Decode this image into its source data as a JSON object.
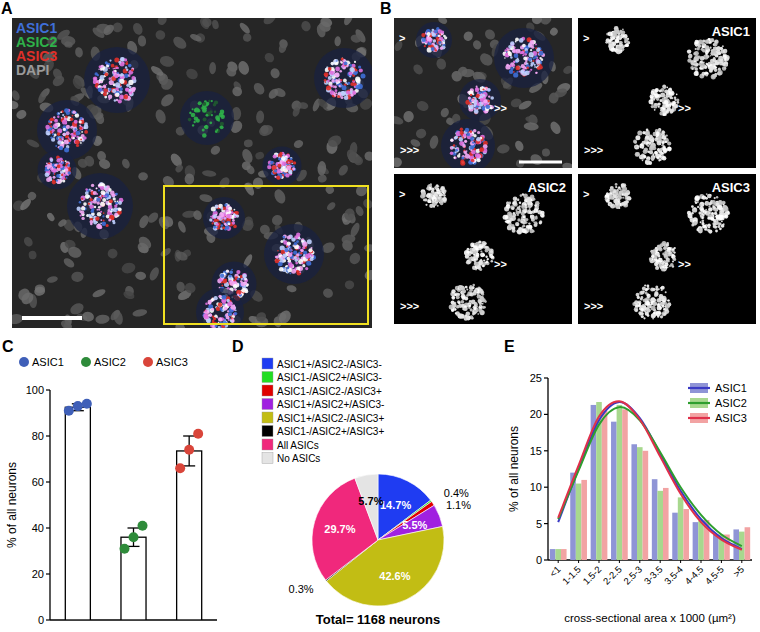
{
  "figure": {
    "panel_a": {
      "panel": "A",
      "channels": [
        {
          "name": "ASIC1",
          "color": "#3f6fd8"
        },
        {
          "name": "ASIC2",
          "color": "#2fb24a"
        },
        {
          "name": "ASIC3",
          "color": "#e0302a"
        },
        {
          "name": "DAPI",
          "color": "#9a9a9a"
        }
      ]
    },
    "panel_b": {
      "panel": "B",
      "images": [
        "ASIC1",
        "ASIC2",
        "ASIC3"
      ],
      "arrowheads": [
        ">",
        ">>",
        ">>>"
      ]
    }
  },
  "chart_data": [
    {
      "type": "bar",
      "panel": "C",
      "categories": [
        "ASIC1",
        "ASIC2",
        "ASIC3"
      ],
      "colors": [
        "#3f5fb8",
        "#2e8b3a",
        "#d9453a"
      ],
      "values": [
        92.5,
        36,
        73.5
      ],
      "errors": [
        1.5,
        4,
        6.5
      ],
      "points": [
        [
          91,
          93,
          94
        ],
        [
          31,
          36,
          41
        ],
        [
          66,
          74,
          81
        ]
      ],
      "ylim": [
        0,
        100
      ],
      "yticks": [
        0,
        20,
        40,
        60,
        80,
        100
      ],
      "y_label": "% of all neurons",
      "tick_labels": "y"
    },
    {
      "type": "pie",
      "panel": "D",
      "categories": [
        "ASIC1+/ASIC2-/ASIC3-",
        "ASIC1-/ASIC2+/ASIC3-",
        "ASIC1-/ASIC2-/ASIC3+",
        "ASIC1+/ASIC2+/ASIC3-",
        "ASIC1+/ASIC2-/ASIC3+",
        "ASIC1-/ASIC2+/ASIC3+",
        "All ASICs",
        "No ASICs"
      ],
      "values": [
        14.7,
        0.4,
        1.1,
        5.5,
        42.6,
        0.3,
        29.7,
        5.7
      ],
      "value_labels": [
        "14.7%",
        "0.4%",
        "1.1%",
        "5.5%",
        "42.6%",
        "0.3%",
        "29.7%",
        "5.7%"
      ],
      "colors": [
        "#1f3cf2",
        "#22dd22",
        "#e00000",
        "#a020e0",
        "#c2bd14",
        "#000000",
        "#f0287c",
        "#e4e4e4"
      ],
      "data_labels": true,
      "annotations": [
        "Total= 1168 neurons"
      ]
    },
    {
      "type": "bar",
      "panel": "E",
      "categories": [
        "<1",
        "1-1.5",
        "1.5-2",
        "2-2.5",
        "2.5-3",
        "3-3.5",
        "3.5-4",
        "4-4.5",
        "4.5-5",
        ">5"
      ],
      "series": [
        {
          "name": "ASIC1",
          "color": "#8f94d6",
          "values": [
            1.5,
            12,
            21.3,
            19,
            15.9,
            11.1,
            6.5,
            5.2,
            3.5,
            4.2
          ],
          "fit": {
            "color": "#3a3ac4",
            "values": [
              5.2,
              12.5,
              19.2,
              21.7,
              19.5,
              14.6,
              9.5,
              5.6,
              3.0,
              1.5
            ]
          }
        },
        {
          "name": "ASIC2",
          "color": "#a8d88e",
          "values": [
            1.5,
            10.5,
            21.7,
            21.3,
            15.5,
            9.5,
            8.6,
            5.4,
            3.5,
            3.9
          ],
          "fit": {
            "color": "#2e9e2e",
            "values": [
              5.6,
              12.3,
              18.6,
              21.0,
              19.2,
              14.8,
              10.0,
              6.2,
              3.5,
              1.9
            ]
          }
        },
        {
          "name": "ASIC3",
          "color": "#f2a3a3",
          "values": [
            1.5,
            11,
            20.5,
            20.7,
            15,
            9.9,
            7,
            5.5,
            3.5,
            4.5
          ],
          "fit": {
            "color": "#e0304a",
            "values": [
              5.8,
              13.0,
              19.7,
              21.8,
              19.3,
              14.2,
              9.1,
              5.2,
              2.8,
              1.4
            ]
          }
        }
      ],
      "ylim": [
        0,
        25
      ],
      "yticks": [
        0,
        5,
        10,
        15,
        20,
        25
      ],
      "x_label": "cross-sectional area x 1000 (µm²)",
      "y_label": "% of all neurons",
      "legend": "upper right"
    }
  ]
}
